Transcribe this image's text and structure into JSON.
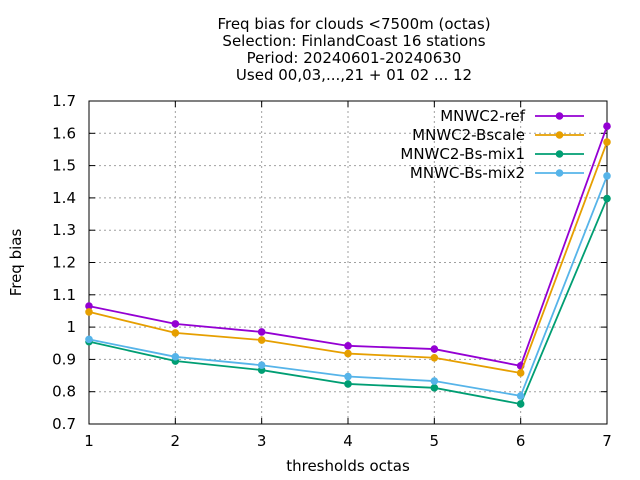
{
  "chart_data": {
    "type": "line",
    "title_lines": [
      "Freq bias  for clouds <7500m (octas)",
      "Selection: FinlandCoast      16 stations",
      "Period: 20240601-20240630",
      "Used 00,03,...,21 + 01 02 ... 12"
    ],
    "xlabel": "thresholds octas",
    "ylabel": "Freq bias",
    "x": [
      1,
      2,
      3,
      4,
      5,
      6,
      7
    ],
    "xlim": [
      1,
      7
    ],
    "ylim": [
      0.7,
      1.7
    ],
    "xticks": [
      "1",
      "2",
      "3",
      "4",
      "5",
      "6",
      "7"
    ],
    "yticks": [
      "0.7",
      "0.8",
      "0.9",
      "1",
      "1.1",
      "1.2",
      "1.3",
      "1.4",
      "1.5",
      "1.6",
      "1.7"
    ],
    "grid": true,
    "legend_position": "top-right",
    "series": [
      {
        "name": "MNWC2-ref",
        "color": "#9400d3",
        "values": [
          1.065,
          1.01,
          0.985,
          0.942,
          0.932,
          0.88,
          1.622
        ]
      },
      {
        "name": "MNWC2-Bscale",
        "color": "#e69f00",
        "values": [
          1.047,
          0.982,
          0.96,
          0.918,
          0.905,
          0.858,
          1.573
        ]
      },
      {
        "name": "MNWC2-Bs-mix1",
        "color": "#009e73",
        "values": [
          0.955,
          0.895,
          0.867,
          0.824,
          0.812,
          0.762,
          1.398
        ]
      },
      {
        "name": "MNWC-Bs-mix2",
        "color": "#56b4e9",
        "values": [
          0.962,
          0.908,
          0.882,
          0.847,
          0.833,
          0.787,
          1.468
        ]
      }
    ]
  }
}
